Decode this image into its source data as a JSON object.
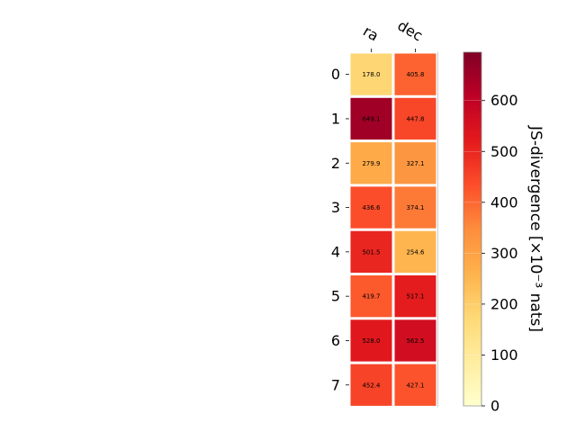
{
  "chart_data": {
    "type": "heatmap",
    "columns": [
      "ra",
      "dec"
    ],
    "rows": [
      "0",
      "1",
      "2",
      "3",
      "4",
      "5",
      "6",
      "7"
    ],
    "values": [
      [
        178.0,
        405.8
      ],
      [
        649.1,
        447.8
      ],
      [
        279.9,
        327.1
      ],
      [
        436.6,
        374.1
      ],
      [
        501.5,
        254.6
      ],
      [
        419.7,
        517.1
      ],
      [
        528.0,
        562.5
      ],
      [
        452.4,
        427.1
      ]
    ],
    "cell_labels": [
      [
        "178.0",
        "405.8"
      ],
      [
        "649.1",
        "447.8"
      ],
      [
        "279.9",
        "327.1"
      ],
      [
        "436.6",
        "374.1"
      ],
      [
        "501.5",
        "254.6"
      ],
      [
        "419.7",
        "517.1"
      ],
      [
        "528.0",
        "562.5"
      ],
      [
        "452.4",
        "427.1"
      ]
    ],
    "colorbar": {
      "label": "JS-divergence [×10⁻³ nats]",
      "range": [
        0,
        695
      ],
      "ticks": [
        0,
        100,
        200,
        300,
        400,
        500,
        600
      ],
      "colormap": "YlOrRd",
      "colormap_stops": [
        "#ffffcc",
        "#ffeda0",
        "#fed976",
        "#feb24c",
        "#fd8d3c",
        "#fc4e2a",
        "#e31a1c",
        "#bd0026",
        "#800026"
      ]
    }
  }
}
